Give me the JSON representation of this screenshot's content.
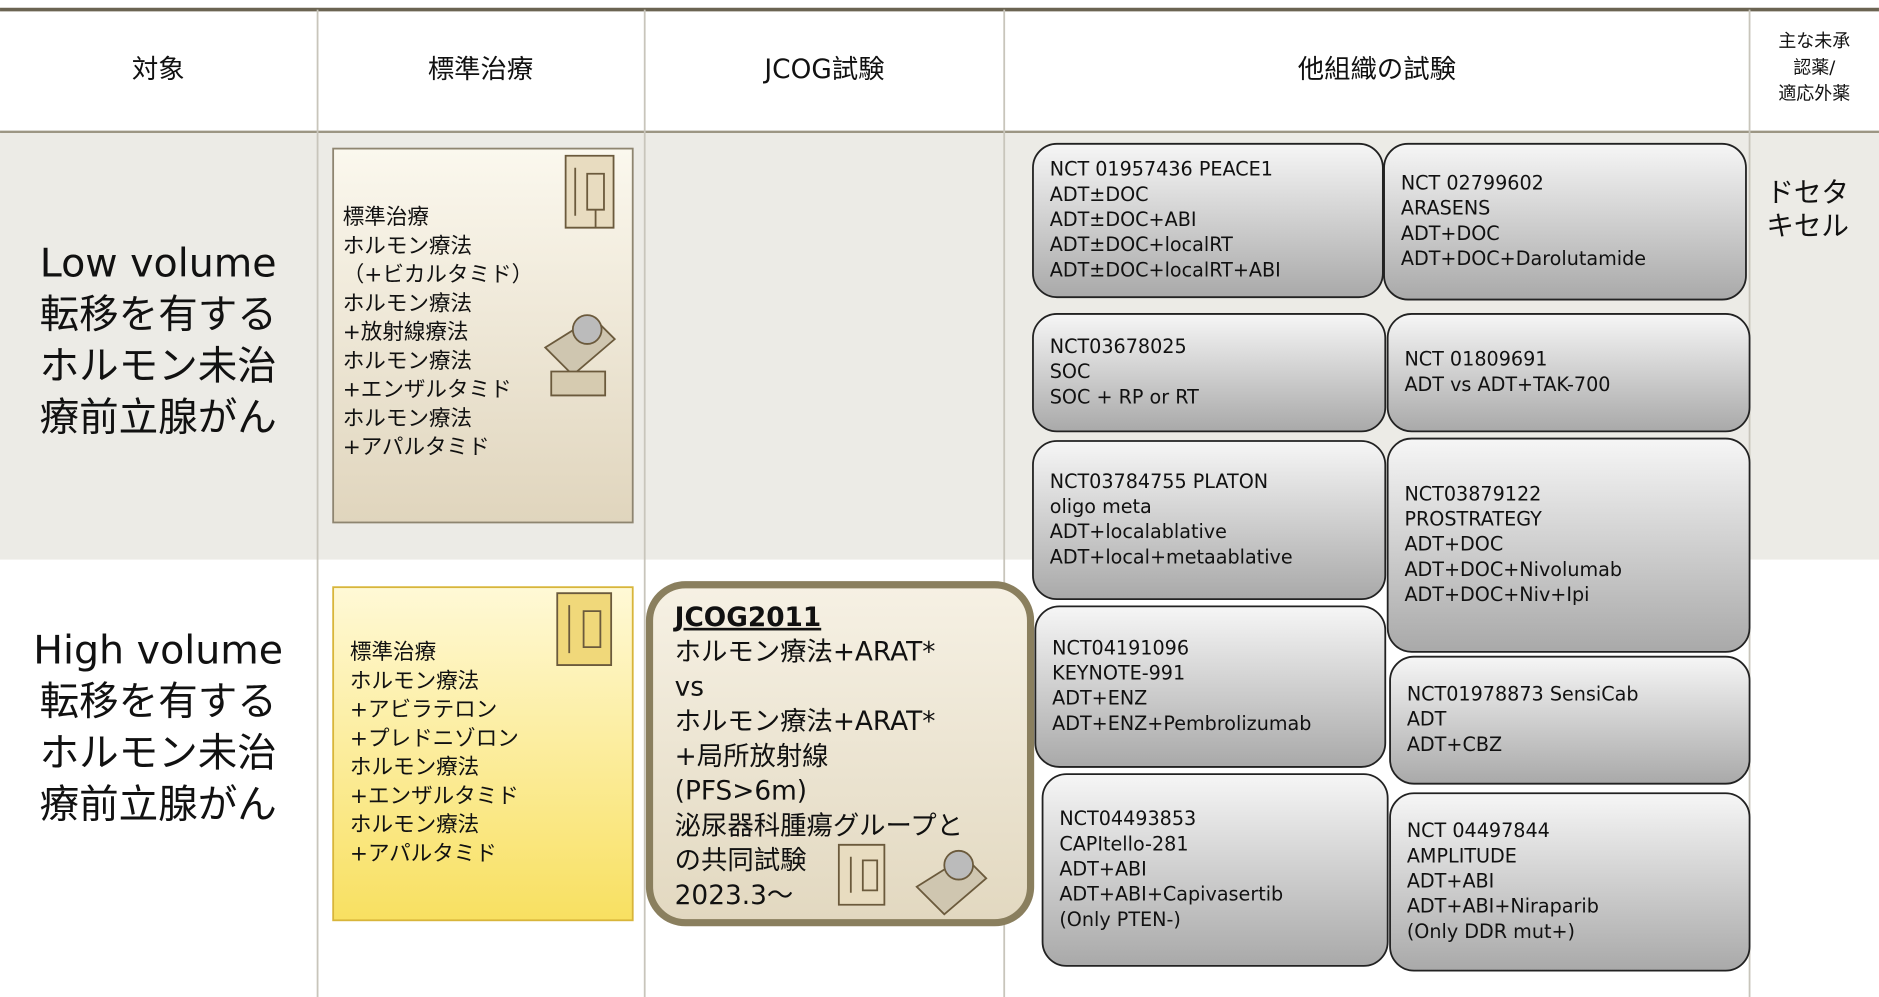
{
  "header": {
    "columns": [
      "対象",
      "標準治療",
      "JCOG試験",
      "他組織の試験"
    ],
    "unapproved": [
      "主な未承",
      "認薬/",
      "適応外薬"
    ]
  },
  "rows": [
    {
      "target": [
        "Low volume",
        "転移を有する",
        "ホルモン未治",
        "療前立腺がん"
      ],
      "standard": [
        "標準治療",
        "ホルモン療法",
        "（+ビカルタミド）",
        "ホルモン療法",
        "+放射線療法",
        "ホルモン療法",
        "+エンザルタミド",
        "ホルモン療法",
        "+アパルタミド"
      ],
      "unapproved": [
        "ドセタ",
        "キセル"
      ]
    },
    {
      "target": [
        "High volume",
        "転移を有する",
        "ホルモン未治",
        "療前立腺がん"
      ],
      "standard": [
        "標準治療",
        "ホルモン療法",
        "+アビラテロン",
        "+プレドニゾロン",
        "ホルモン療法",
        "+エンザルタミド",
        "ホルモン療法",
        "+アパルタミド"
      ],
      "jcog": {
        "title": "JCOG2011",
        "lines": [
          "ホルモン療法+ARAT*",
          "vs",
          "ホルモン療法+ARAT*",
          "+局所放射線",
          "(PFS>6m)",
          "泌尿器科腫瘍グループと",
          "の共同試験",
          "2023.3〜"
        ]
      }
    }
  ],
  "trials": [
    [
      "NCT 01957436 PEACE1",
      "ADT±DOC",
      "ADT±DOC+ABI",
      "ADT±DOC+localRT",
      "ADT±DOC+localRT+ABI"
    ],
    [
      "NCT 02799602",
      "ARASENS",
      "ADT+DOC",
      "ADT+DOC+Darolutamide"
    ],
    [
      "NCT03678025",
      "SOC",
      "SOC + RP or RT"
    ],
    [
      "NCT 01809691",
      "ADT vs ADT+TAK-700"
    ],
    [
      "NCT03784755 PLATON",
      "oligo meta",
      "ADT+localablative",
      "ADT+local+metaablative"
    ],
    [
      "NCT03879122",
      "PROSTRATEGY",
      "ADT+DOC",
      "ADT+DOC+Nivolumab",
      "ADT+DOC+Niv+Ipi"
    ],
    [
      "NCT04191096",
      "KEYNOTE-991",
      "ADT+ENZ",
      "ADT+ENZ+Pembrolizumab"
    ],
    [
      "NCT01978873 SensiCab",
      "ADT",
      "ADT+CBZ"
    ],
    [
      "NCT04493853",
      "CAPItello-281",
      "ADT+ABI",
      "ADT+ABI+Capivasertib",
      "(Only PTEN-)"
    ],
    [
      "NCT 04497844",
      "AMPLITUDE",
      "ADT+ABI",
      "ADT+ABI+Niraparib",
      "(Only DDR mut+)"
    ]
  ]
}
